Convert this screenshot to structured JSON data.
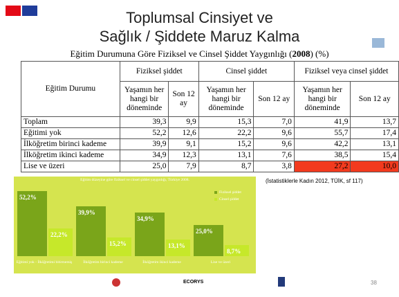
{
  "header": {
    "title_lines": [
      "Toplumsal Cinsiyet ve",
      "Sağlık / Şiddete Maruz Kalma"
    ],
    "subtitle_parts": [
      "Eğitim Durumuna Göre Fiziksel ve Cinsel Şiddet Yaygınlığı (",
      "2008",
      ") (%)"
    ]
  },
  "table": {
    "column_header": "Eğitim Durumu",
    "groups": [
      "Fiziksel şiddet",
      "Cinsel şiddet",
      "Fiziksel veya cinsel şiddet"
    ],
    "subheaders": [
      "Yaşamın her hangi bir döneminde",
      "Son 12 ay"
    ],
    "rows": [
      [
        "Toplam",
        "39,3",
        "9,9",
        "15,3",
        "7,0",
        "41,9",
        "13,7"
      ],
      [
        "Eğitimi yok",
        "52,2",
        "12,6",
        "22,2",
        "9,6",
        "55,7",
        "17,4"
      ],
      [
        "İlköğretim birinci kademe",
        "39,9",
        "9,1",
        "15,2",
        "9,6",
        "42,2",
        "13,1"
      ],
      [
        "İlköğretim ikinci kademe",
        "34,9",
        "12,3",
        "13,1",
        "7,6",
        "38,5",
        "15,4"
      ],
      [
        "Lise ve üzeri",
        "25,0",
        "7,9",
        "8,7",
        "3,8",
        "27,2",
        "10,0"
      ]
    ]
  },
  "source": "(İstatistiklerle Kadın 2012, TÜİK, sf 117)",
  "chart_data": {
    "type": "bar",
    "title": "Eğitim düzeyine göre fiziksel ve cinsel şiddet yaygınlığı, Türkiye 2008.",
    "categories": [
      "Eğitimi yok - İlköğretimi bitirmemiş",
      "İlköğretim birinci kademe",
      "İlköğretim ikinci kademe",
      "Lise ve üzeri"
    ],
    "series": [
      {
        "name": "Fiziksel şiddet",
        "color": "#7aa51a",
        "values": [
          52.2,
          39.9,
          34.9,
          25.0
        ],
        "value_labels": [
          "52,2%",
          "39,9%",
          "34,9%",
          "25,0%"
        ]
      },
      {
        "name": "Cinsel şiddet",
        "color": "#c6e82a",
        "values": [
          22.2,
          15.2,
          13.1,
          8.7
        ],
        "value_labels": [
          "22,2%",
          "15,2%",
          "13,1%",
          "8,7%"
        ]
      }
    ],
    "legend": "top-right"
  },
  "footer": {
    "logo_text": "ECORYS",
    "page_number": "38"
  }
}
